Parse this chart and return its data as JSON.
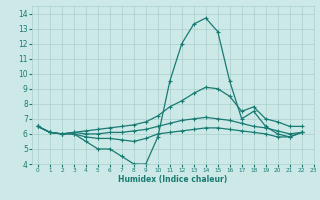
{
  "xlabel": "Humidex (Indice chaleur)",
  "xlim": [
    -0.5,
    23
  ],
  "ylim": [
    4,
    14.5
  ],
  "xticks": [
    0,
    1,
    2,
    3,
    4,
    5,
    6,
    7,
    8,
    9,
    10,
    11,
    12,
    13,
    14,
    15,
    16,
    17,
    18,
    19,
    20,
    21,
    22,
    23
  ],
  "yticks": [
    4,
    5,
    6,
    7,
    8,
    9,
    10,
    11,
    12,
    13,
    14
  ],
  "bg_color": "#cce9e7",
  "grid_color": "#aacfcc",
  "line_color": "#1a7a72",
  "lines": [
    [
      6.5,
      6.1,
      6.0,
      6.0,
      5.5,
      5.0,
      5.0,
      4.5,
      4.0,
      4.0,
      5.8,
      9.5,
      12.0,
      13.3,
      13.7,
      12.8,
      9.5,
      7.0,
      7.5,
      6.5,
      6.0,
      5.8,
      6.1
    ],
    [
      6.5,
      6.1,
      6.0,
      6.1,
      6.2,
      6.3,
      6.4,
      6.5,
      6.6,
      6.8,
      7.2,
      7.8,
      8.2,
      8.7,
      9.1,
      9.0,
      8.5,
      7.5,
      7.8,
      7.0,
      6.8,
      6.5,
      6.5
    ],
    [
      6.5,
      6.1,
      6.0,
      6.1,
      6.0,
      6.0,
      6.1,
      6.1,
      6.2,
      6.3,
      6.5,
      6.7,
      6.9,
      7.0,
      7.1,
      7.0,
      6.9,
      6.7,
      6.5,
      6.4,
      6.2,
      6.0,
      6.1
    ],
    [
      6.5,
      6.1,
      6.0,
      6.0,
      5.8,
      5.7,
      5.7,
      5.6,
      5.5,
      5.7,
      6.0,
      6.1,
      6.2,
      6.3,
      6.4,
      6.4,
      6.3,
      6.2,
      6.1,
      6.0,
      5.8,
      5.8,
      6.1
    ]
  ]
}
